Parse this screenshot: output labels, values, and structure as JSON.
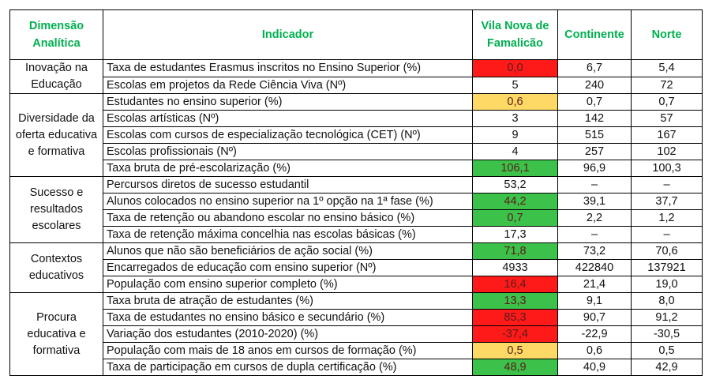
{
  "header": {
    "dimension": "Dimensão Analítica",
    "indicator": "Indicador",
    "famalicao": "Vila Nova de Famalicão",
    "continente": "Continente",
    "norte": "Norte"
  },
  "groups": [
    {
      "dimension": "Inovação na Educação",
      "rows": [
        {
          "indicator": "Taxa de estudantes Erasmus inscritos no Ensino Superior (%)",
          "values": [
            "0,0",
            "6,7",
            "5,4"
          ],
          "highlight": "#ff1a1a"
        },
        {
          "indicator": "Escolas em projetos da Rede Ciência Viva (Nº)",
          "values": [
            "5",
            "240",
            "72"
          ]
        }
      ]
    },
    {
      "dimension": "Diversidade da oferta educativa e formativa",
      "rows": [
        {
          "indicator": "Estudantes no ensino superior (%)",
          "values": [
            "0,6",
            "0,7",
            "0,7"
          ],
          "highlight": "#ffd966"
        },
        {
          "indicator": "Escolas artísticas (Nº)",
          "values": [
            "3",
            "142",
            "57"
          ]
        },
        {
          "indicator": "Escolas com cursos de especialização tecnológica (CET) (Nº)",
          "values": [
            "9",
            "515",
            "167"
          ]
        },
        {
          "indicator": "Escolas profissionais (Nº)",
          "values": [
            "4",
            "257",
            "102"
          ]
        },
        {
          "indicator": "Taxa bruta de pré-escolarização (%)",
          "values": [
            "106,1",
            "96,9",
            "100,3"
          ],
          "highlight": "#3cc24a"
        }
      ]
    },
    {
      "dimension": "Sucesso e resultados escolares",
      "rows": [
        {
          "indicator": "Percursos diretos de sucesso estudantil",
          "values": [
            "53,2",
            "–",
            "–"
          ]
        },
        {
          "indicator": "Alunos colocados no ensino superior na 1º opção na 1ª fase (%)",
          "values": [
            "44,2",
            "39,1",
            "37,7"
          ],
          "highlight": "#3cc24a"
        },
        {
          "indicator": "Taxa de retenção ou abandono escolar no ensino básico (%)",
          "values": [
            "0,7",
            "2,2",
            "1,2"
          ],
          "highlight": "#3cc24a"
        },
        {
          "indicator": "Taxa de retenção máxima concelhia nas escolas básicas (%)",
          "values": [
            "17,3",
            "–",
            "–"
          ]
        }
      ]
    },
    {
      "dimension": "Contextos educativos",
      "rows": [
        {
          "indicator": "Alunos que não são beneficiários de ação social (%)",
          "values": [
            "71,8",
            "73,2",
            "70,6"
          ],
          "highlight": "#3cc24a"
        },
        {
          "indicator": "Encarregados de educação com ensino superior (Nº)",
          "values": [
            "4933",
            "422840",
            "137921"
          ]
        },
        {
          "indicator": "População com ensino superior completo (%)",
          "values": [
            "16,4",
            "21,4",
            "19,0"
          ],
          "highlight": "#ff1a1a"
        }
      ]
    },
    {
      "dimension": "Procura educativa e formativa",
      "rows": [
        {
          "indicator": "Taxa bruta de atração de estudantes (%)",
          "values": [
            "13,3",
            "9,1",
            "8,0"
          ],
          "highlight": "#3cc24a"
        },
        {
          "indicator": "Taxa de estudantes no ensino básico e secundário (%)",
          "values": [
            "85,3",
            "90,7",
            "91,2"
          ],
          "highlight": "#ff1a1a"
        },
        {
          "indicator": "Variação dos estudantes (2010-2020) (%)",
          "values": [
            "-37,4",
            "-22,9",
            "-30,5"
          ],
          "highlight": "#ff1a1a"
        },
        {
          "indicator": "População com mais de 18 anos em cursos de formação (%)",
          "values": [
            "0,5",
            "0,6",
            "0,5"
          ],
          "highlight": "#ffd966"
        },
        {
          "indicator": "Taxa de participação em cursos de dupla certificação (%)",
          "values": [
            "48,9",
            "40,9",
            "42,9"
          ],
          "highlight": "#3cc24a"
        }
      ]
    }
  ]
}
